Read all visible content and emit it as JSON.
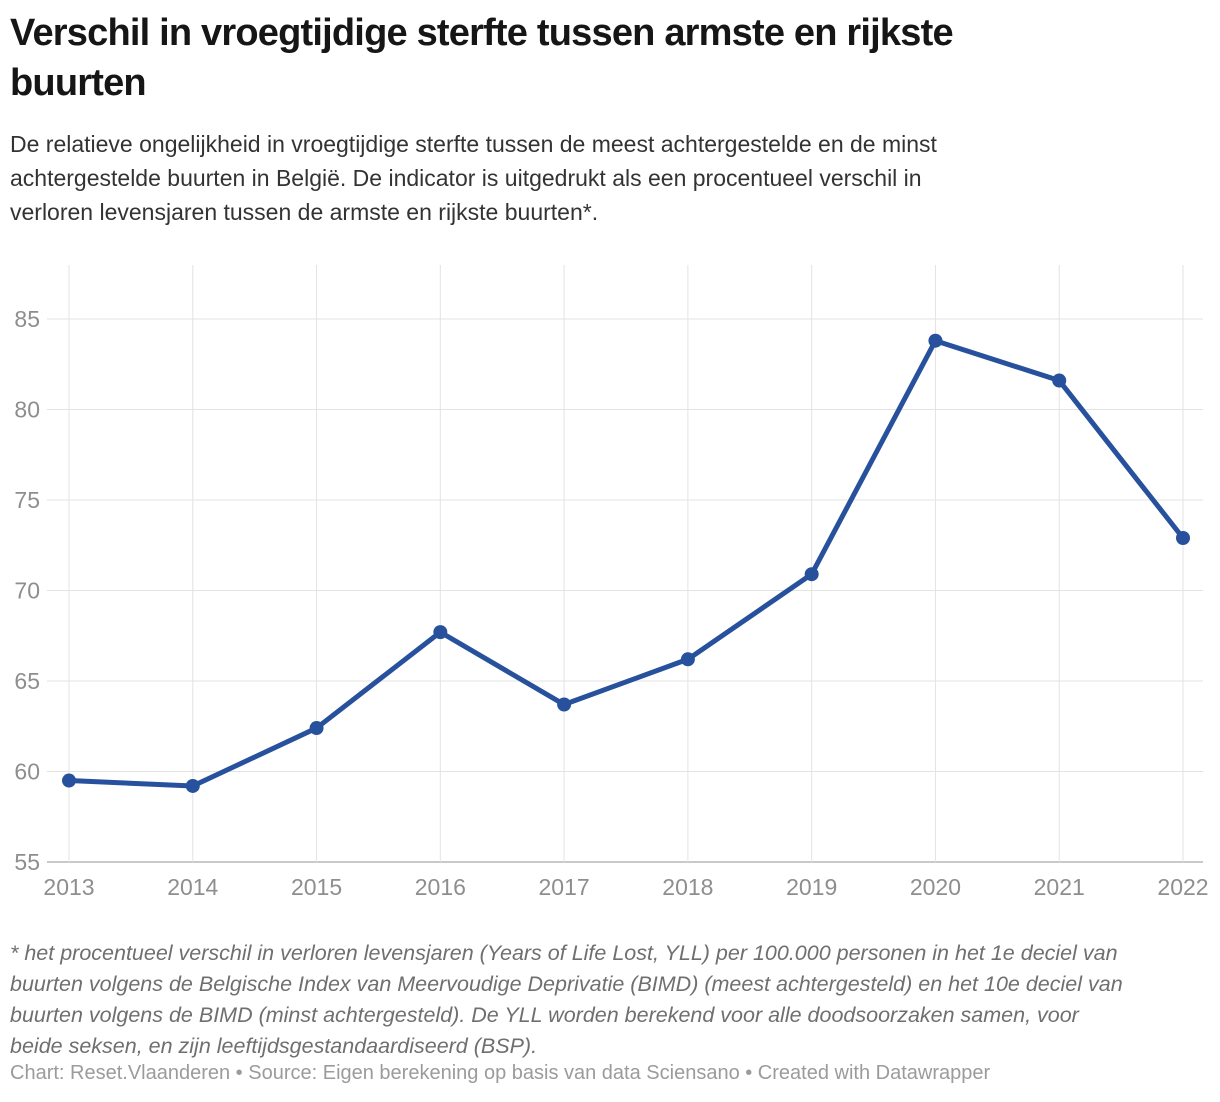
{
  "header": {
    "title": "Verschil in vroegtijdige sterfte tussen armste en rijkste buurten",
    "title_lines": [
      "Verschil in vroegtijdige sterfte tussen armste en rijkste",
      "buurten"
    ],
    "subtitle": "De relatieve ongelijkheid in vroegtijdige sterfte tussen de meest achtergestelde en de minst achtergestelde buurten in België. De indicator is uitgedrukt als een procentueel verschil in verloren levensjaren tussen de armste en rijkste buurten*.",
    "subtitle_lines": [
      "De relatieve ongelijkheid in vroegtijdige sterfte tussen de meest achtergestelde en de minst",
      "achtergestelde buurten in België. De indicator is uitgedrukt als een procentueel verschil in",
      "verloren levensjaren tussen de armste en rijkste buurten*."
    ]
  },
  "footer": {
    "footnote": "* het procentueel verschil in verloren levensjaren (Years of Life Lost, YLL) per 100.000 personen in het 1e deciel van buurten volgens de Belgische Index van Meervoudige Deprivatie (BIMD) (meest achtergesteld) en het 10e deciel van buurten volgens de BIMD (minst achtergesteld). De YLL worden berekend voor alle doodsoorzaken samen, voor beide seksen, en zijn leeftijdsgestandaardiseerd (BSP).",
    "footnote_lines": [
      "* het procentueel verschil in verloren levensjaren (Years of Life Lost, YLL) per 100.000 personen in het 1e deciel van",
      "buurten volgens de Belgische Index van Meervoudige Deprivatie (BIMD) (meest achtergesteld) en het 10e deciel van",
      "buurten volgens de BIMD (minst achtergesteld). De YLL worden berekend voor alle doodsoorzaken samen, voor",
      "beide seksen, en zijn leeftijdsgestandaardiseerd (BSP)."
    ],
    "credit": "Chart: Reset.Vlaanderen • Source: Eigen berekening op basis van data Sciensano • Created with Datawrapper"
  },
  "colors": {
    "line": "#27519c",
    "point": "#27519c",
    "grid": "#e3e3e3",
    "baseline": "#c9c9c9",
    "axis_label": "#8e8e8e",
    "title": "#161616",
    "subtitle": "#333333",
    "footnote": "#6f6f6f",
    "credit": "#9b9b9b"
  },
  "chart_data": {
    "type": "line",
    "title": "Verschil in vroegtijdige sterfte tussen armste en rijkste buurten",
    "x": [
      "2013",
      "2014",
      "2015",
      "2016",
      "2017",
      "2018",
      "2019",
      "2020",
      "2021",
      "2022"
    ],
    "values": [
      59.5,
      59.2,
      62.4,
      67.7,
      63.7,
      66.2,
      70.9,
      83.8,
      81.6,
      72.9
    ],
    "xlabel": "",
    "ylabel": "",
    "ylim": [
      55,
      88
    ],
    "yticks": [
      55,
      60,
      65,
      70,
      75,
      80,
      85
    ],
    "grid": true,
    "legend_position": "none",
    "line_color": "#27519c",
    "point_color": "#27519c",
    "point_radius": 7,
    "line_width": 5
  }
}
